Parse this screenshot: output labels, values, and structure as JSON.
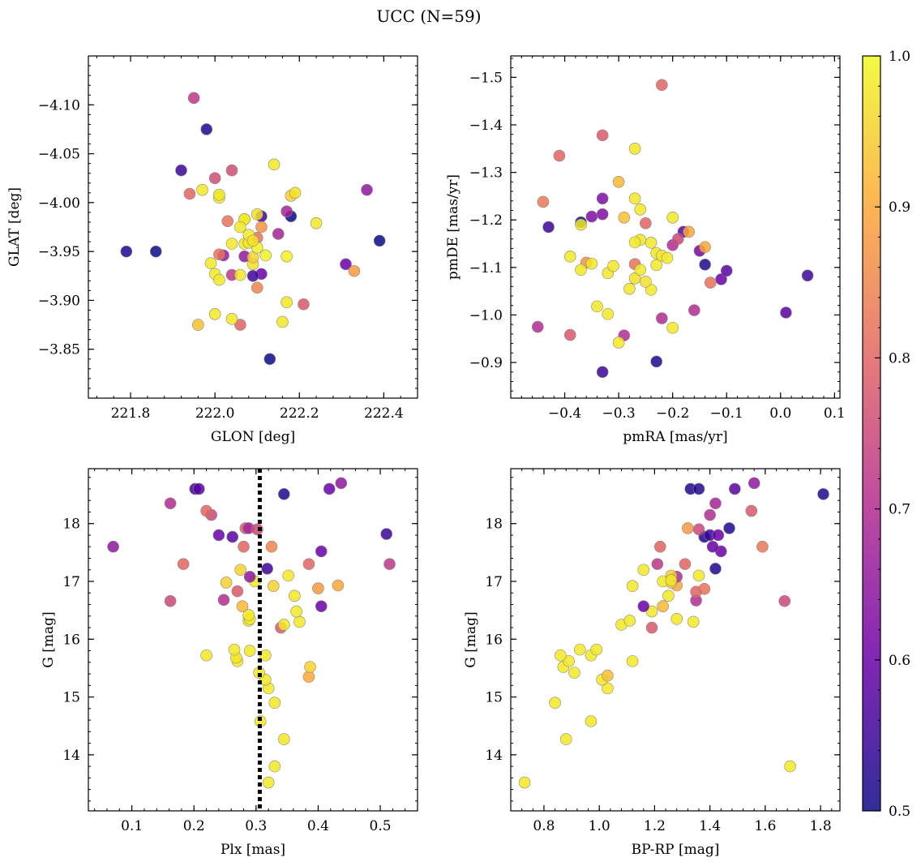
{
  "figure": {
    "title": "UCC (N=59)",
    "colormap": [
      "#0d0887",
      "#6a00a8",
      "#b12a90",
      "#e16462",
      "#fca636",
      "#f0f921"
    ],
    "colorbar": {
      "vmin": 0.5,
      "vmax": 1.0,
      "ticks": [
        "0.5",
        "0.6",
        "0.7",
        "0.8",
        "0.9",
        "1.0"
      ]
    }
  },
  "chart_data": [
    {
      "type": "scatter",
      "xlabel": "GLON [deg]",
      "ylabel": "GLAT [deg]",
      "xlim": [
        221.7,
        222.48
      ],
      "ylim": [
        -4.15,
        -3.8
      ],
      "xticks": [
        "221.8",
        "222.0",
        "222.2",
        "222.4"
      ],
      "yticks": [
        "-3.85",
        "-3.90",
        "-3.95",
        "-4.00",
        "-4.05",
        "-4.10"
      ],
      "points": [
        [
          222.13,
          -3.84,
          0.5
        ],
        [
          221.79,
          -3.95,
          0.52
        ],
        [
          221.86,
          -3.95,
          0.5
        ],
        [
          222.39,
          -3.961,
          0.5
        ],
        [
          221.92,
          -4.033,
          0.55
        ],
        [
          221.98,
          -4.075,
          0.52
        ],
        [
          221.95,
          -4.107,
          0.72
        ],
        [
          222.36,
          -4.013,
          0.65
        ],
        [
          222.31,
          -3.937,
          0.6
        ],
        [
          222.33,
          -3.93,
          0.88
        ],
        [
          222.21,
          -3.896,
          0.78
        ],
        [
          222.18,
          -3.986,
          0.5
        ],
        [
          222.17,
          -3.991,
          0.68
        ],
        [
          222.15,
          -3.968,
          0.68
        ],
        [
          222.11,
          -3.927,
          0.6
        ],
        [
          222.09,
          -3.925,
          0.55
        ],
        [
          222.11,
          -3.986,
          0.55
        ],
        [
          222.07,
          -3.945,
          0.65
        ],
        [
          222.02,
          -3.946,
          0.66
        ],
        [
          222.04,
          -3.926,
          0.72
        ],
        [
          222.06,
          -3.875,
          0.8
        ],
        [
          222.01,
          -3.947,
          0.82
        ],
        [
          222.03,
          -3.981,
          0.82
        ],
        [
          222.1,
          -3.913,
          0.85
        ],
        [
          222.11,
          -3.975,
          0.87
        ],
        [
          222.1,
          -3.964,
          0.82
        ],
        [
          222.04,
          -4.033,
          0.76
        ],
        [
          222.0,
          -4.025,
          0.76
        ],
        [
          221.94,
          -4.009,
          0.8
        ],
        [
          221.96,
          -3.875,
          0.93
        ],
        [
          222.0,
          -3.886,
          0.98
        ],
        [
          222.04,
          -3.881,
          0.98
        ],
        [
          222.16,
          -3.878,
          0.98
        ],
        [
          222.17,
          -3.898,
          0.98
        ],
        [
          222.17,
          -3.945,
          0.99
        ],
        [
          222.24,
          -3.979,
          0.98
        ],
        [
          222.18,
          -4.007,
          0.95
        ],
        [
          222.19,
          -4.01,
          0.97
        ],
        [
          222.14,
          -4.039,
          0.98
        ],
        [
          222.01,
          -4.005,
          0.98
        ],
        [
          222.01,
          -4.008,
          0.98
        ],
        [
          221.97,
          -4.013,
          0.98
        ],
        [
          221.99,
          -3.938,
          0.98
        ],
        [
          222.0,
          -3.927,
          0.98
        ],
        [
          222.01,
          -3.921,
          0.98
        ],
        [
          222.06,
          -3.926,
          0.98
        ],
        [
          222.09,
          -3.937,
          0.97
        ],
        [
          222.09,
          -3.944,
          0.95
        ],
        [
          222.1,
          -3.954,
          0.99
        ],
        [
          222.12,
          -3.946,
          0.99
        ],
        [
          222.04,
          -3.958,
          0.98
        ],
        [
          222.07,
          -3.958,
          0.98
        ],
        [
          222.08,
          -3.959,
          0.98
        ],
        [
          222.08,
          -3.967,
          0.98
        ],
        [
          222.07,
          -3.983,
          0.98
        ],
        [
          222.07,
          -3.983,
          0.98
        ],
        [
          222.09,
          -3.961,
          0.97
        ],
        [
          222.1,
          -3.988,
          0.97
        ],
        [
          222.06,
          -3.975,
          0.98
        ]
      ]
    },
    {
      "type": "scatter",
      "xlabel": "pmRA [mas/yr]",
      "ylabel": "pmDE [mas/yr]",
      "xlim": [
        -0.5,
        0.11
      ],
      "ylim": [
        -1.545,
        -0.825
      ],
      "xticks": [
        "-0.4",
        "-0.3",
        "-0.2",
        "-0.1",
        "0.0",
        "0.1"
      ],
      "yticks": [
        "-0.9",
        "-1.0",
        "-1.1",
        "-1.2",
        "-1.3",
        "-1.4",
        "-1.5"
      ],
      "points": [
        [
          -0.33,
          -0.88,
          0.55
        ],
        [
          -0.23,
          -0.902,
          0.52
        ],
        [
          0.01,
          -1.005,
          0.58
        ],
        [
          0.05,
          -1.083,
          0.55
        ],
        [
          -0.43,
          -1.185,
          0.55
        ],
        [
          -0.37,
          -1.195,
          0.5
        ],
        [
          -0.33,
          -1.245,
          0.63
        ],
        [
          -0.33,
          -1.212,
          0.63
        ],
        [
          -0.35,
          -1.207,
          0.63
        ],
        [
          -0.14,
          -1.106,
          0.52
        ],
        [
          -0.11,
          -1.075,
          0.6
        ],
        [
          -0.1,
          -1.093,
          0.58
        ],
        [
          -0.15,
          -1.135,
          0.62
        ],
        [
          -0.18,
          -1.175,
          0.58
        ],
        [
          -0.2,
          -1.147,
          0.7
        ],
        [
          -0.19,
          -1.16,
          0.75
        ],
        [
          -0.16,
          -1.01,
          0.7
        ],
        [
          -0.22,
          -0.993,
          0.7
        ],
        [
          -0.29,
          -0.957,
          0.7
        ],
        [
          -0.45,
          -0.975,
          0.7
        ],
        [
          -0.39,
          -0.958,
          0.78
        ],
        [
          -0.44,
          -1.238,
          0.83
        ],
        [
          -0.41,
          -1.335,
          0.8
        ],
        [
          -0.33,
          -1.378,
          0.78
        ],
        [
          -0.22,
          -1.484,
          0.8
        ],
        [
          -0.25,
          -1.193,
          0.8
        ],
        [
          -0.27,
          -1.107,
          0.82
        ],
        [
          -0.36,
          -1.11,
          0.87
        ],
        [
          -0.13,
          -1.068,
          0.82
        ],
        [
          -0.14,
          -1.143,
          0.9
        ],
        [
          -0.17,
          -1.175,
          0.9
        ],
        [
          -0.3,
          -1.28,
          0.92
        ],
        [
          -0.29,
          -1.205,
          0.93
        ],
        [
          -0.3,
          -0.942,
          0.98
        ],
        [
          -0.32,
          -1.002,
          0.98
        ],
        [
          -0.34,
          -1.018,
          0.98
        ],
        [
          -0.2,
          -0.973,
          0.98
        ],
        [
          -0.28,
          -1.055,
          0.98
        ],
        [
          -0.24,
          -1.053,
          0.98
        ],
        [
          -0.25,
          -1.07,
          0.97
        ],
        [
          -0.27,
          -1.077,
          0.97
        ],
        [
          -0.32,
          -1.088,
          0.98
        ],
        [
          -0.37,
          -1.095,
          0.98
        ],
        [
          -0.35,
          -1.108,
          0.98
        ],
        [
          -0.39,
          -1.123,
          0.98
        ],
        [
          -0.31,
          -1.103,
          0.98
        ],
        [
          -0.26,
          -1.095,
          0.98
        ],
        [
          -0.23,
          -1.105,
          0.98
        ],
        [
          -0.23,
          -1.13,
          0.98
        ],
        [
          -0.22,
          -1.125,
          0.98
        ],
        [
          -0.21,
          -1.12,
          0.98
        ],
        [
          -0.24,
          -1.152,
          0.98
        ],
        [
          -0.26,
          -1.158,
          0.98
        ],
        [
          -0.27,
          -1.153,
          0.98
        ],
        [
          -0.26,
          -1.222,
          0.98
        ],
        [
          -0.27,
          -1.245,
          0.98
        ],
        [
          -0.2,
          -1.205,
          0.98
        ],
        [
          -0.27,
          -1.35,
          0.98
        ],
        [
          -0.37,
          -1.19,
          0.98
        ]
      ]
    },
    {
      "type": "scatter",
      "xlabel": "Plx [mas]",
      "ylabel": "G [mag]",
      "xlim": [
        0.03,
        0.56
      ],
      "ylim": [
        18.95,
        13.03
      ],
      "xticks": [
        "0.1",
        "0.2",
        "0.3",
        "0.4",
        "0.5"
      ],
      "yticks": [
        "14",
        "15",
        "16",
        "17",
        "18"
      ],
      "vline": 0.306,
      "points": [
        [
          0.32,
          13.52,
          0.98
        ],
        [
          0.33,
          13.8,
          0.98
        ],
        [
          0.345,
          14.27,
          0.98
        ],
        [
          0.307,
          14.58,
          0.98
        ],
        [
          0.33,
          14.9,
          0.98
        ],
        [
          0.32,
          15.15,
          0.98
        ],
        [
          0.315,
          15.3,
          0.98
        ],
        [
          0.305,
          15.42,
          0.98
        ],
        [
          0.385,
          15.35,
          0.9
        ],
        [
          0.387,
          15.52,
          0.95
        ],
        [
          0.27,
          15.62,
          0.98
        ],
        [
          0.22,
          15.72,
          0.98
        ],
        [
          0.268,
          15.68,
          0.98
        ],
        [
          0.315,
          15.72,
          0.98
        ],
        [
          0.29,
          15.8,
          0.98
        ],
        [
          0.265,
          15.82,
          0.98
        ],
        [
          0.34,
          16.2,
          0.78
        ],
        [
          0.345,
          16.25,
          0.98
        ],
        [
          0.37,
          16.3,
          0.98
        ],
        [
          0.288,
          16.32,
          0.98
        ],
        [
          0.29,
          16.35,
          0.98
        ],
        [
          0.288,
          16.42,
          0.98
        ],
        [
          0.365,
          16.48,
          0.98
        ],
        [
          0.278,
          16.57,
          0.92
        ],
        [
          0.405,
          16.57,
          0.6
        ],
        [
          0.162,
          16.66,
          0.75
        ],
        [
          0.248,
          16.68,
          0.7
        ],
        [
          0.362,
          16.75,
          0.98
        ],
        [
          0.27,
          16.83,
          0.78
        ],
        [
          0.328,
          16.92,
          0.95
        ],
        [
          0.4,
          16.88,
          0.88
        ],
        [
          0.432,
          16.93,
          0.9
        ],
        [
          0.298,
          17.0,
          0.98
        ],
        [
          0.252,
          16.98,
          0.95
        ],
        [
          0.29,
          17.08,
          0.65
        ],
        [
          0.352,
          17.1,
          0.98
        ],
        [
          0.275,
          17.2,
          0.95
        ],
        [
          0.318,
          17.22,
          0.55
        ],
        [
          0.183,
          17.3,
          0.8
        ],
        [
          0.385,
          17.3,
          0.8
        ],
        [
          0.515,
          17.3,
          0.72
        ],
        [
          0.405,
          17.52,
          0.6
        ],
        [
          0.325,
          17.6,
          0.85
        ],
        [
          0.28,
          17.6,
          0.8
        ],
        [
          0.07,
          17.6,
          0.65
        ],
        [
          0.24,
          17.8,
          0.6
        ],
        [
          0.262,
          17.77,
          0.58
        ],
        [
          0.51,
          17.82,
          0.55
        ],
        [
          0.283,
          17.92,
          0.78
        ],
        [
          0.288,
          17.92,
          0.68
        ],
        [
          0.302,
          17.9,
          0.75
        ],
        [
          0.228,
          18.15,
          0.75
        ],
        [
          0.22,
          18.22,
          0.8
        ],
        [
          0.162,
          18.35,
          0.7
        ],
        [
          0.345,
          18.51,
          0.52
        ],
        [
          0.202,
          18.6,
          0.55
        ],
        [
          0.208,
          18.6,
          0.58
        ],
        [
          0.418,
          18.6,
          0.6
        ],
        [
          0.437,
          18.7,
          0.65
        ]
      ]
    },
    {
      "type": "scatter",
      "xlabel": "BP-RP [mag]",
      "ylabel": "G [mag]",
      "xlim": [
        0.68,
        1.87
      ],
      "ylim": [
        18.95,
        13.03
      ],
      "xticks": [
        "0.8",
        "1.0",
        "1.2",
        "1.4",
        "1.6",
        "1.8"
      ],
      "yticks": [
        "14",
        "15",
        "16",
        "17",
        "18"
      ],
      "points": [
        [
          0.73,
          13.52,
          0.98
        ],
        [
          1.69,
          13.8,
          0.98
        ],
        [
          0.88,
          14.27,
          0.98
        ],
        [
          0.97,
          14.58,
          0.98
        ],
        [
          0.84,
          14.9,
          0.98
        ],
        [
          1.03,
          15.15,
          0.98
        ],
        [
          1.01,
          15.3,
          0.98
        ],
        [
          1.03,
          15.37,
          0.93
        ],
        [
          0.91,
          15.42,
          0.98
        ],
        [
          0.87,
          15.52,
          0.98
        ],
        [
          0.89,
          15.62,
          0.98
        ],
        [
          1.12,
          15.62,
          0.98
        ],
        [
          0.86,
          15.72,
          0.98
        ],
        [
          0.97,
          15.72,
          0.98
        ],
        [
          0.93,
          15.82,
          0.98
        ],
        [
          0.99,
          15.82,
          0.98
        ],
        [
          1.19,
          16.2,
          0.78
        ],
        [
          1.08,
          16.25,
          0.98
        ],
        [
          1.11,
          16.32,
          0.98
        ],
        [
          1.34,
          16.3,
          0.98
        ],
        [
          1.28,
          16.35,
          0.98
        ],
        [
          1.19,
          16.48,
          0.98
        ],
        [
          1.16,
          16.57,
          0.6
        ],
        [
          1.23,
          16.57,
          0.92
        ],
        [
          1.35,
          16.67,
          0.7
        ],
        [
          1.67,
          16.66,
          0.75
        ],
        [
          1.25,
          16.75,
          0.98
        ],
        [
          1.35,
          16.82,
          0.8
        ],
        [
          1.38,
          16.87,
          0.82
        ],
        [
          1.12,
          16.92,
          0.98
        ],
        [
          1.28,
          16.93,
          0.9
        ],
        [
          1.26,
          16.98,
          0.95
        ],
        [
          1.23,
          17.0,
          0.98
        ],
        [
          1.28,
          17.08,
          0.7
        ],
        [
          1.26,
          17.1,
          0.95
        ],
        [
          1.36,
          17.1,
          0.98
        ],
        [
          1.16,
          17.2,
          0.98
        ],
        [
          1.42,
          17.22,
          0.52
        ],
        [
          1.21,
          17.3,
          0.72
        ],
        [
          1.31,
          17.3,
          0.8
        ],
        [
          1.44,
          17.52,
          0.6
        ],
        [
          1.41,
          17.6,
          0.6
        ],
        [
          1.59,
          17.6,
          0.83
        ],
        [
          1.22,
          17.6,
          0.8
        ],
        [
          1.38,
          17.77,
          0.52
        ],
        [
          1.4,
          17.8,
          0.55
        ],
        [
          1.43,
          17.8,
          0.6
        ],
        [
          1.32,
          17.92,
          0.88
        ],
        [
          1.36,
          17.9,
          0.75
        ],
        [
          1.47,
          17.92,
          0.52
        ],
        [
          1.4,
          18.15,
          0.7
        ],
        [
          1.55,
          18.22,
          0.78
        ],
        [
          1.42,
          18.35,
          0.68
        ],
        [
          1.81,
          18.51,
          0.52
        ],
        [
          1.33,
          18.6,
          0.52
        ],
        [
          1.36,
          18.6,
          0.52
        ],
        [
          1.49,
          18.6,
          0.58
        ],
        [
          1.56,
          18.7,
          0.65
        ],
        [
          1.26,
          17.02,
          0.98
        ]
      ]
    }
  ]
}
